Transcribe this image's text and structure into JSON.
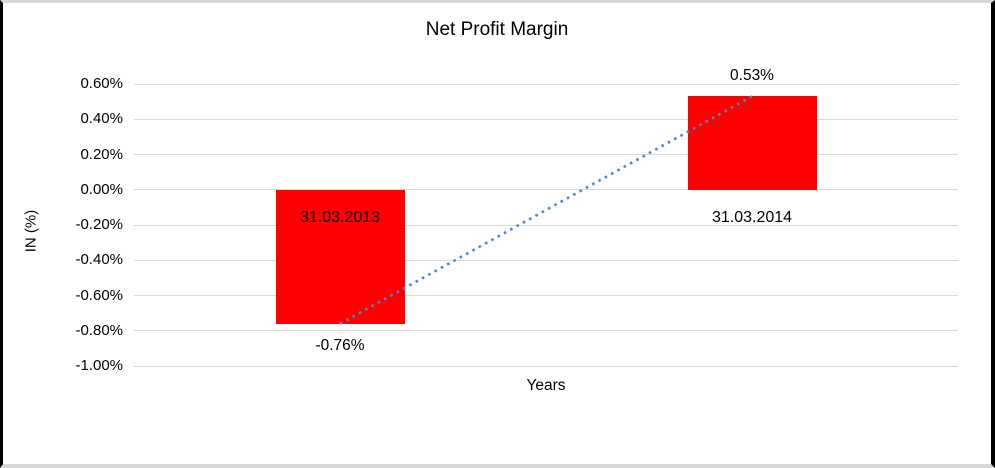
{
  "frame": {
    "background": "#ffffff",
    "side_border_color": "#000000",
    "top_bottom_border_color": "#d8d8d8"
  },
  "chart_data": {
    "type": "bar",
    "title": "Net Profit Margin",
    "xlabel": "Years",
    "ylabel": "IN (%)",
    "categories": [
      "31.03.2013",
      "31.03.2014"
    ],
    "values": [
      -0.76,
      0.53
    ],
    "value_labels": [
      "-0.76%",
      "0.53%"
    ],
    "ylim": [
      -1.0,
      0.6
    ],
    "ytick_step": 0.2,
    "ytick_labels": [
      "0.60%",
      "0.40%",
      "0.20%",
      "0.00%",
      "-0.20%",
      "-0.40%",
      "-0.60%",
      "-0.80%",
      "-1.00%"
    ],
    "grid": true,
    "legend": "none",
    "bar_color": "#ff0000",
    "gridline_color": "#d9d9d9",
    "trendline": {
      "type": "linear",
      "style": "dotted",
      "color": "#4f86c6",
      "from_value": -0.76,
      "to_value": 0.53
    }
  }
}
